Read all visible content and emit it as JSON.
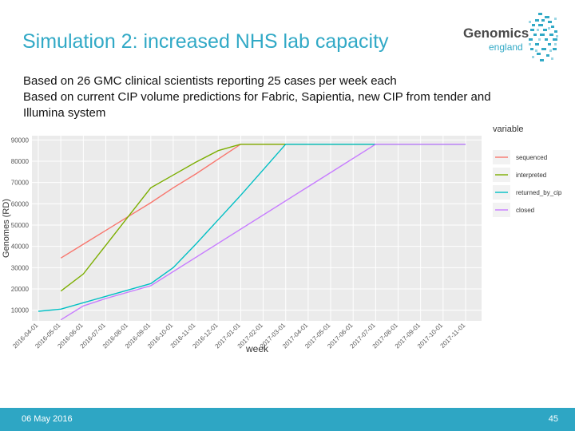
{
  "slide": {
    "title": "Simulation 2: increased NHS lab capacity",
    "subtitle_lines": [
      "Based on 26 GMC clinical scientists reporting 25 cases per week each",
      "Based on current CIP volume predictions for Fabric, Sapientia, new CIP from tender and",
      "Illumina system"
    ],
    "footer_date": "06 May 2016",
    "page_number": "45"
  },
  "logo": {
    "word1": "Genomics",
    "word2": "england",
    "color_primary": "#31a9c6",
    "color_text": "#4a4a4a"
  },
  "chart_data": {
    "type": "line",
    "xlabel": "week",
    "ylabel": "Genomes (RD)",
    "legend_title": "variable",
    "legend_position": "right",
    "grid": true,
    "ylim": [
      5000,
      92000
    ],
    "y_ticks": [
      10000,
      20000,
      30000,
      40000,
      50000,
      60000,
      70000,
      80000,
      90000
    ],
    "y_tick_labels": [
      "10000",
      "20000",
      "30000",
      "40000",
      "50000",
      "60000",
      "70000",
      "80000",
      "90000"
    ],
    "x_tick_labels": [
      "2016-04-01",
      "2016-05-01",
      "2016-06-01",
      "2016-07-01",
      "2016-08-01",
      "2016-09-01",
      "2016-10-01",
      "2016-11-01",
      "2016-12-01",
      "2017-01-01",
      "2017-02-01",
      "2017-03-01",
      "2017-04-01",
      "2017-05-01",
      "2017-06-01",
      "2017-07-01",
      "2017-08-01",
      "2017-09-01",
      "2017-10-01",
      "2017-11-01"
    ],
    "x_tick_display": [
      "2016-04-01",
      "2016-05-01",
      "2016-06-01",
      "2016-07-01",
      "2016-08-01",
      "2016-09-01",
      "2016-10-01",
      "2016-11-01",
      "2016-12-01",
      "2017-01-01",
      "2017-02-01",
      "2017-03-01",
      "2017-04-01",
      "2017-05-01",
      "2017-06-01",
      "2017-07-01",
      "2017-08-01",
      "2017-09-01",
      "2017-10-01",
      "2017-11-01"
    ],
    "series": [
      {
        "name": "sequenced",
        "color": "#f8766d",
        "x": [
          "2016-05-01",
          "2016-06-01",
          "2016-07-01",
          "2016-08-01",
          "2016-09-01",
          "2016-10-01",
          "2016-11-01",
          "2016-12-01",
          "2017-01-01",
          "2017-11-01"
        ],
        "y": [
          34500,
          41000,
          47500,
          54000,
          60500,
          67500,
          74000,
          81000,
          88000,
          88000
        ]
      },
      {
        "name": "interpreted",
        "color": "#7cae00",
        "x": [
          "2016-05-01",
          "2016-06-01",
          "2016-07-01",
          "2016-08-01",
          "2016-09-01",
          "2016-10-01",
          "2016-11-01",
          "2016-12-01",
          "2017-01-01",
          "2017-11-01"
        ],
        "y": [
          19000,
          27000,
          40500,
          54000,
          67500,
          73500,
          79500,
          85000,
          88000,
          88000
        ]
      },
      {
        "name": "returned_by_cip",
        "color": "#00bfc4",
        "x": [
          "2016-04-01",
          "2016-05-01",
          "2016-06-01",
          "2016-07-01",
          "2016-08-01",
          "2016-09-01",
          "2016-10-01",
          "2016-11-01",
          "2016-12-01",
          "2017-01-01",
          "2017-02-01",
          "2017-03-01",
          "2017-11-01"
        ],
        "y": [
          9500,
          10500,
          13500,
          16500,
          19500,
          22500,
          30000,
          41000,
          52500,
          64000,
          76000,
          88000,
          88000
        ]
      },
      {
        "name": "closed",
        "color": "#c77cff",
        "x": [
          "2016-05-01",
          "2016-06-01",
          "2016-07-01",
          "2016-08-01",
          "2016-09-01",
          "2017-07-01",
          "2017-11-01"
        ],
        "y": [
          5500,
          12000,
          15500,
          18500,
          21500,
          88000,
          88000
        ]
      }
    ]
  }
}
